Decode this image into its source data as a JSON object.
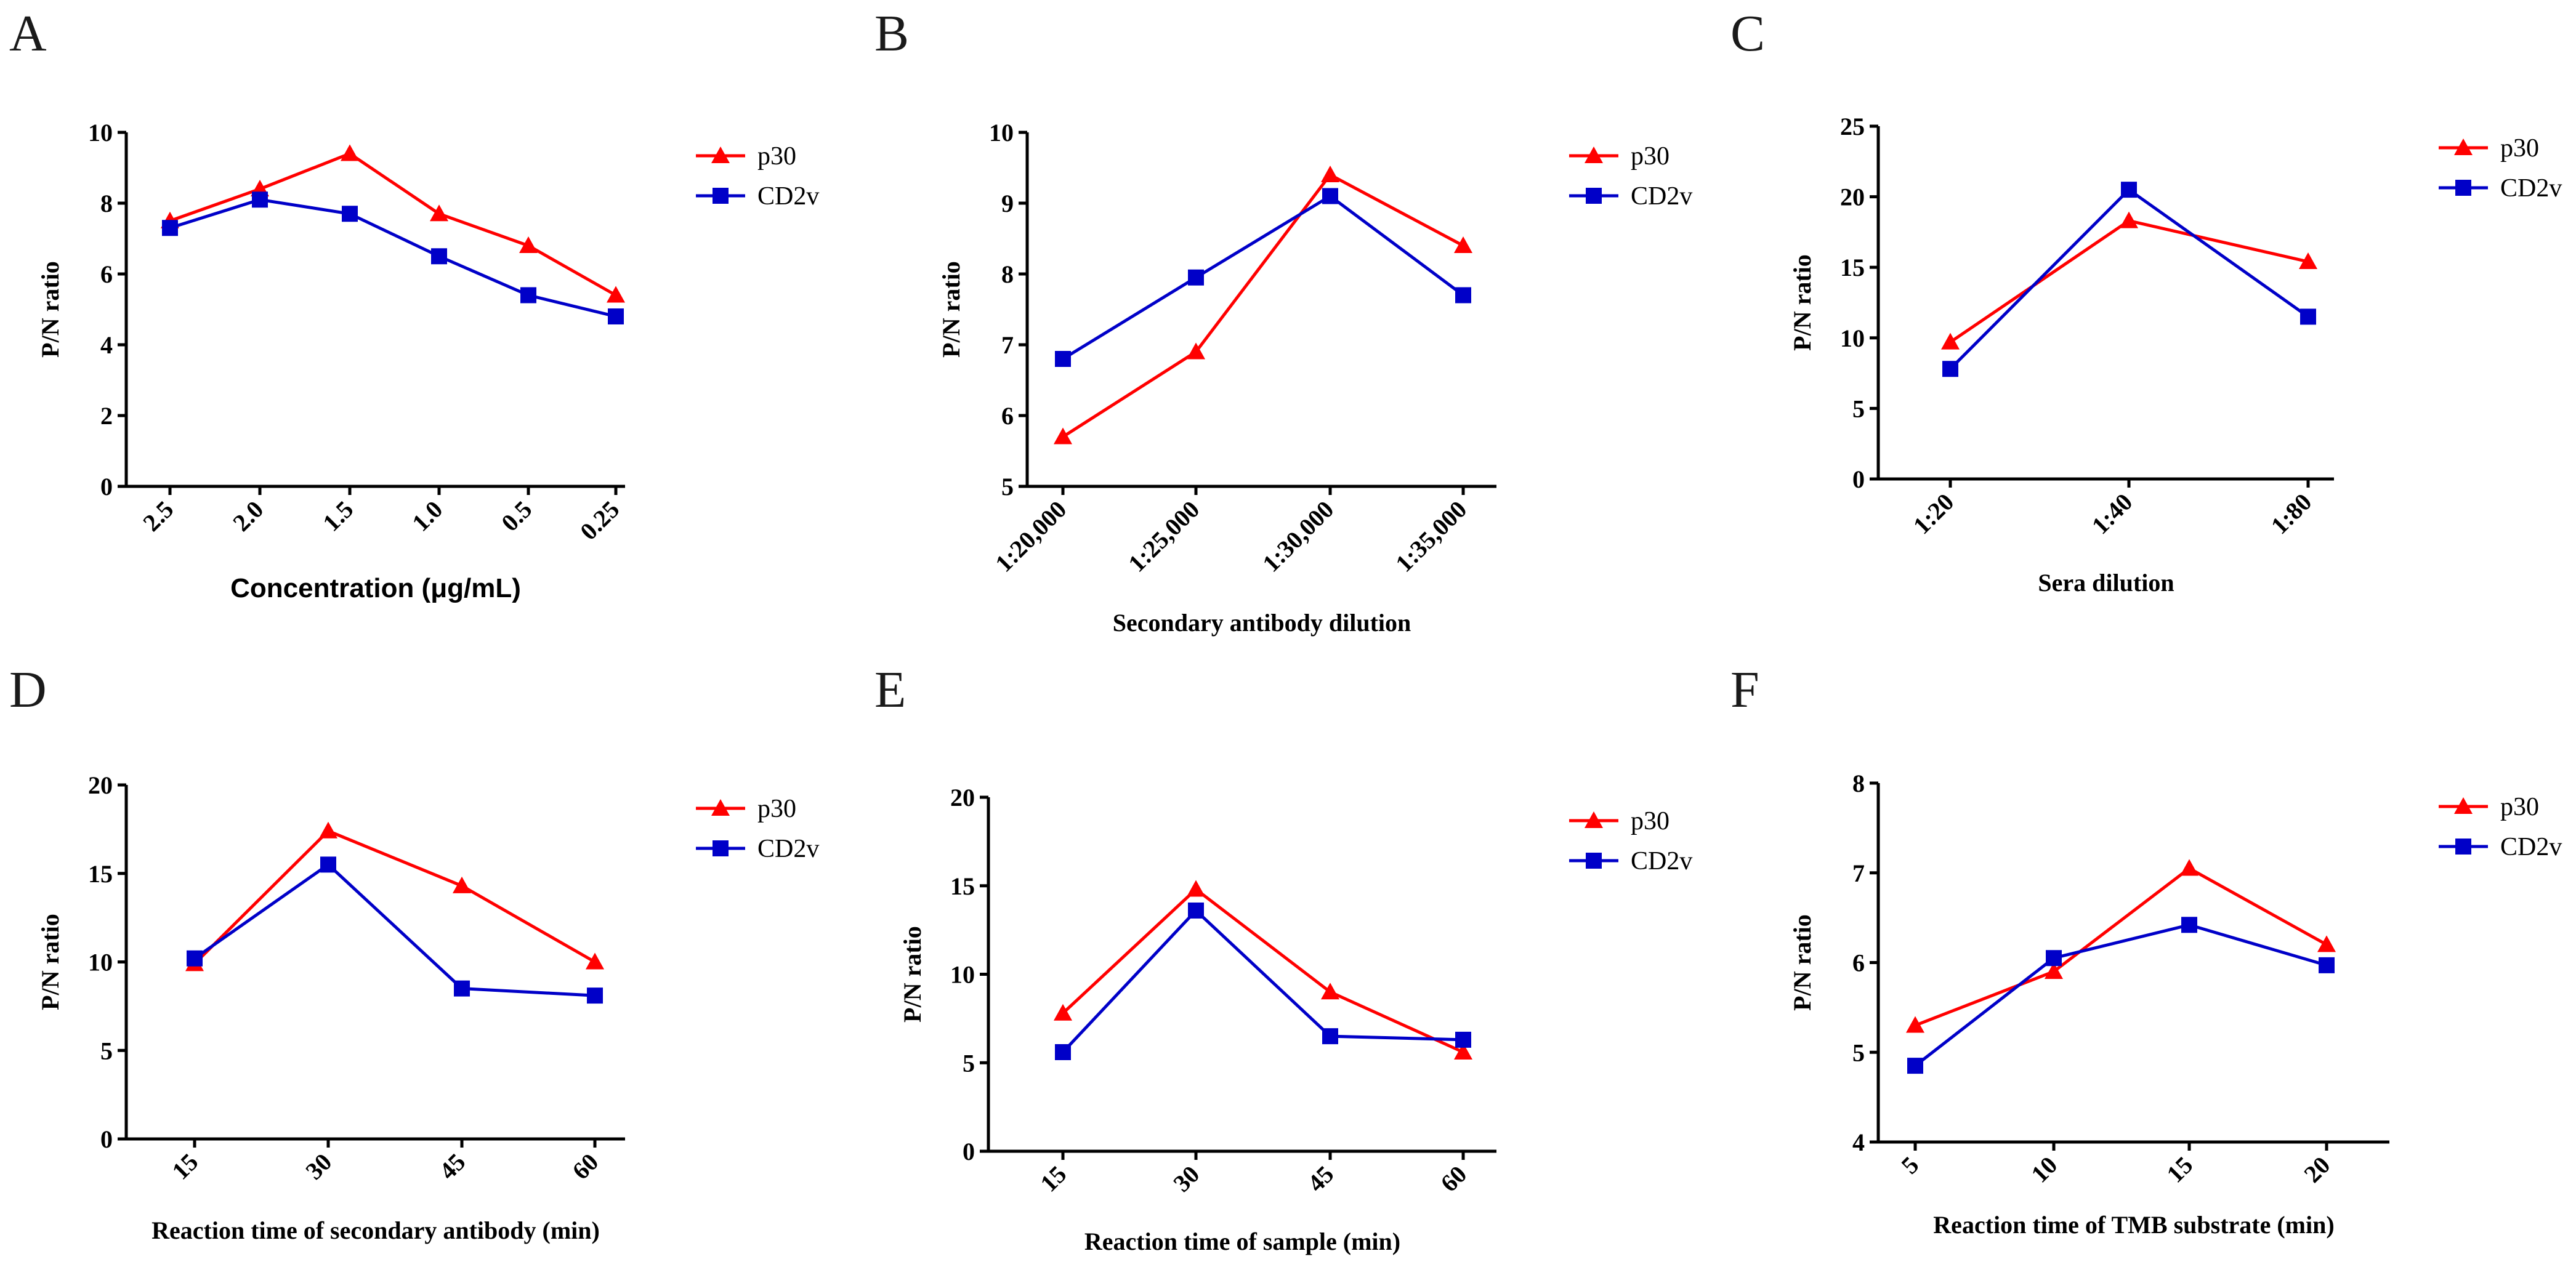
{
  "colors": {
    "p30": "#ff0000",
    "CD2v": "#0000c8",
    "axis": "#000000"
  },
  "chart_data": [
    {
      "panel": "A",
      "type": "line",
      "categories": [
        "2.5",
        "2.0",
        "1.5",
        "1.0",
        "0.5",
        "0.25"
      ],
      "series": [
        {
          "name": "p30",
          "values": [
            7.5,
            8.4,
            9.4,
            7.7,
            6.8,
            5.4
          ]
        },
        {
          "name": "CD2v",
          "values": [
            7.3,
            8.1,
            7.7,
            6.5,
            5.4,
            4.8
          ]
        }
      ],
      "xlabel": "Concentration (μg/mL)",
      "ylabel": "P/N ratio",
      "ylim": [
        0,
        10
      ],
      "yticks": [
        0,
        2,
        4,
        6,
        8,
        10
      ]
    },
    {
      "panel": "B",
      "type": "line",
      "categories": [
        "1:20,000",
        "1:25,000",
        "1:30,000",
        "1:35,000"
      ],
      "series": [
        {
          "name": "p30",
          "values": [
            5.7,
            6.9,
            9.4,
            8.4
          ]
        },
        {
          "name": "CD2v",
          "values": [
            6.8,
            7.95,
            9.1,
            7.7
          ]
        }
      ],
      "xlabel": "Secondary antibody dilution",
      "ylabel": "P/N ratio",
      "ylim": [
        5,
        10
      ],
      "yticks": [
        5,
        6,
        7,
        8,
        9,
        10
      ]
    },
    {
      "panel": "C",
      "type": "line",
      "categories": [
        "1:20",
        "1:40",
        "1:80"
      ],
      "series": [
        {
          "name": "p30",
          "values": [
            9.7,
            18.3,
            15.4
          ]
        },
        {
          "name": "CD2v",
          "values": [
            7.8,
            20.5,
            11.5
          ]
        }
      ],
      "xlabel": "Sera dilution",
      "ylabel": "P/N ratio",
      "ylim": [
        0,
        25
      ],
      "yticks": [
        0,
        5,
        10,
        15,
        20,
        25
      ]
    },
    {
      "panel": "D",
      "type": "line",
      "categories": [
        "15",
        "30",
        "45",
        "60"
      ],
      "series": [
        {
          "name": "p30",
          "values": [
            9.9,
            17.4,
            14.3,
            10.0
          ]
        },
        {
          "name": "CD2v",
          "values": [
            10.2,
            15.5,
            8.5,
            8.1
          ]
        }
      ],
      "xlabel": "Reaction time of secondary antibody (min)",
      "ylabel": "P/N ratio",
      "ylim": [
        0,
        20
      ],
      "yticks": [
        0,
        5,
        10,
        15,
        20
      ]
    },
    {
      "panel": "E",
      "type": "line",
      "categories": [
        "15",
        "30",
        "45",
        "60"
      ],
      "series": [
        {
          "name": "p30",
          "values": [
            7.8,
            14.8,
            9.0,
            5.6
          ]
        },
        {
          "name": "CD2v",
          "values": [
            5.6,
            13.6,
            6.5,
            6.3
          ]
        }
      ],
      "xlabel": "Reaction time of sample (min)",
      "ylabel": "P/N ratio",
      "ylim": [
        0,
        20
      ],
      "yticks": [
        0,
        5,
        10,
        15,
        20
      ]
    },
    {
      "panel": "F",
      "type": "line",
      "categories": [
        "5",
        "10",
        "15",
        "20"
      ],
      "series": [
        {
          "name": "p30",
          "values": [
            5.3,
            5.9,
            7.05,
            6.2
          ]
        },
        {
          "name": "CD2v",
          "values": [
            4.85,
            6.05,
            6.42,
            5.97
          ]
        }
      ],
      "xlabel": "Reaction time of TMB substrate (min)",
      "ylabel": "P/N ratio",
      "ylim": [
        4,
        8
      ],
      "yticks": [
        4,
        5,
        6,
        7,
        8
      ]
    }
  ]
}
